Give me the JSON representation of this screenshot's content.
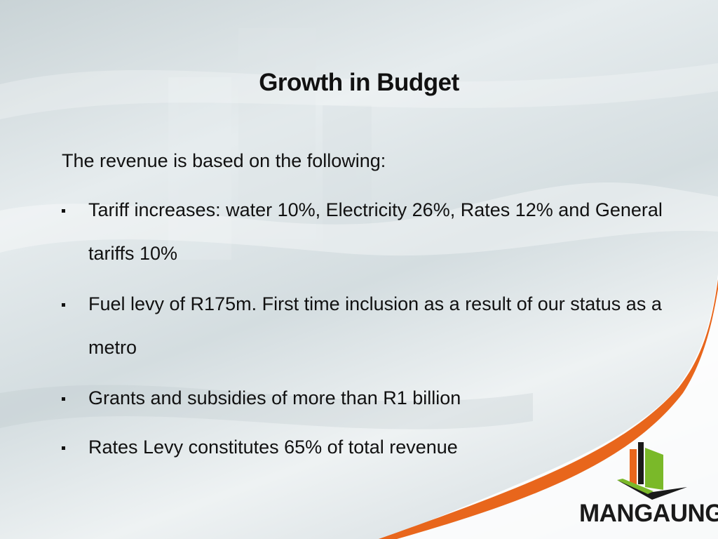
{
  "slide": {
    "title": "Growth in Budget",
    "intro": "The revenue is based on the following:",
    "bullets": [
      "Tariff increases: water 10%, Electricity 26%, Rates 12% and General tariffs 10%",
      "Fuel levy of R175m. First time inclusion as a result of our status as a metro",
      "Grants and subsidies of more than R1 billion",
      "Rates Levy constitutes 65% of total revenue"
    ]
  },
  "logo": {
    "text": "MANGAUNG",
    "colors": {
      "orange": "#e8661c",
      "green": "#7ab929",
      "dark": "#1a1a1a"
    }
  },
  "accent": {
    "swoosh": "#e8661c"
  }
}
